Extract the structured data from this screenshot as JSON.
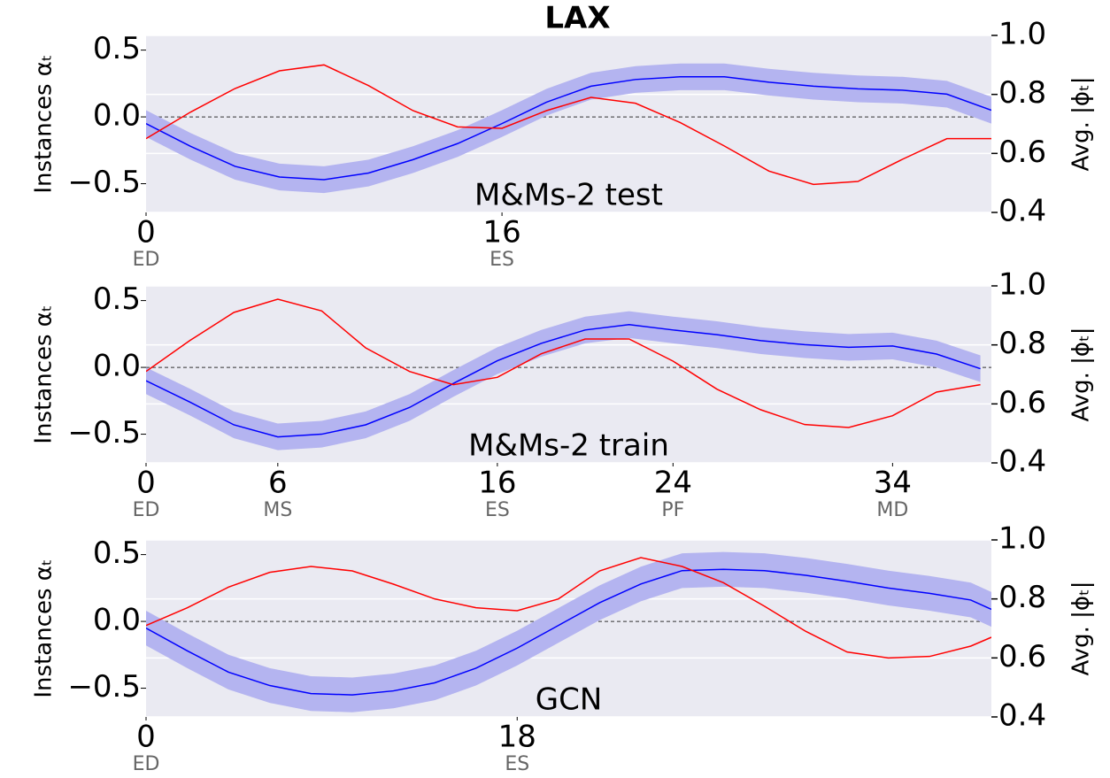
{
  "chart_data": [
    {
      "type": "line",
      "title": "LAX",
      "annotation": "M&Ms-2 test",
      "ylabel": "Instances αₜ",
      "y2label": "Avg. |ϕₜ|",
      "x": [
        0,
        2,
        4,
        6,
        8,
        10,
        12,
        14,
        16,
        18,
        20,
        22,
        24,
        26,
        28,
        30,
        32,
        34,
        36,
        38
      ],
      "xlim": [
        0,
        38
      ],
      "xticks": [
        0,
        16
      ],
      "xtick_phases": [
        "ED",
        "ES"
      ],
      "ylim": [
        -0.715,
        0.61
      ],
      "yticks": [
        {
          "value": -0.5,
          "label": "−0.5"
        },
        {
          "value": 0,
          "label": "0.0"
        },
        {
          "value": 0.5,
          "label": "0.5"
        }
      ],
      "y2lim": [
        0.4,
        1.0
      ],
      "y2ticks": [
        0.4,
        0.6,
        0.8,
        {
          "value": 1.0,
          "label": "1.0"
        }
      ],
      "grid": true,
      "zero_line": true,
      "series": [
        {
          "color": "#0000ff",
          "band_color": "#b4b4f0",
          "values": [
            -0.05,
            -0.22,
            -0.37,
            -0.45,
            -0.47,
            -0.42,
            -0.32,
            -0.2,
            -0.05,
            0.11,
            0.23,
            0.28,
            0.3,
            0.3,
            0.26,
            0.23,
            0.21,
            0.2,
            0.17,
            0.05
          ],
          "lower": [
            -0.15,
            -0.32,
            -0.47,
            -0.55,
            -0.57,
            -0.52,
            -0.42,
            -0.3,
            -0.15,
            0.01,
            0.13,
            0.18,
            0.2,
            0.2,
            0.16,
            0.13,
            0.11,
            0.1,
            0.07,
            -0.05
          ],
          "upper": [
            0.05,
            -0.12,
            -0.27,
            -0.35,
            -0.37,
            -0.32,
            -0.22,
            -0.1,
            0.05,
            0.21,
            0.33,
            0.38,
            0.4,
            0.4,
            0.36,
            0.33,
            0.31,
            0.3,
            0.27,
            0.15
          ]
        },
        {
          "color": "#ff0000",
          "axis": "y2",
          "values": [
            0.65,
            0.74,
            0.82,
            0.88,
            0.9,
            0.83,
            0.745,
            0.69,
            0.685,
            0.745,
            0.79,
            0.77,
            0.705,
            0.625,
            0.54,
            0.495,
            0.505,
            0.58,
            0.65,
            0.65
          ]
        }
      ]
    },
    {
      "type": "line",
      "annotation": "M&Ms-2 train",
      "ylabel": "Instances αₜ",
      "y2label": "Avg. |ϕₜ|",
      "x": [
        0,
        2,
        4,
        6,
        8,
        10,
        12,
        14,
        16,
        18,
        20,
        22,
        24,
        26,
        28,
        30,
        32,
        34,
        36,
        38
      ],
      "xlim": [
        0,
        38.5
      ],
      "xticks": [
        0,
        6,
        16,
        24,
        34
      ],
      "xtick_phases": [
        "ED",
        "MS",
        "ES",
        "PF",
        "MD"
      ],
      "ylim": [
        -0.715,
        0.61
      ],
      "yticks": [
        {
          "value": -0.5,
          "label": "−0.5"
        },
        {
          "value": 0,
          "label": "0.0"
        },
        {
          "value": 0.5,
          "label": "0.5"
        }
      ],
      "y2lim": [
        0.4,
        1.0
      ],
      "y2ticks": [
        0.4,
        0.6,
        0.8,
        {
          "value": 1.0,
          "label": "1.0"
        }
      ],
      "grid": true,
      "zero_line": true,
      "series": [
        {
          "color": "#0000ff",
          "band_color": "#b4b4f0",
          "values": [
            -0.1,
            -0.26,
            -0.43,
            -0.52,
            -0.5,
            -0.43,
            -0.3,
            -0.12,
            0.05,
            0.18,
            0.28,
            0.32,
            0.28,
            0.245,
            0.2,
            0.17,
            0.15,
            0.16,
            0.1,
            -0.01
          ],
          "lower": [
            -0.2,
            -0.36,
            -0.53,
            -0.62,
            -0.6,
            -0.53,
            -0.4,
            -0.22,
            -0.05,
            0.08,
            0.18,
            0.22,
            0.18,
            0.145,
            0.1,
            0.07,
            0.05,
            0.06,
            0,
            -0.11
          ],
          "upper": [
            0,
            -0.16,
            -0.33,
            -0.42,
            -0.4,
            -0.33,
            -0.2,
            -0.02,
            0.15,
            0.28,
            0.38,
            0.42,
            0.38,
            0.345,
            0.3,
            0.27,
            0.25,
            0.26,
            0.2,
            0.09
          ]
        },
        {
          "color": "#ff0000",
          "axis": "y2",
          "values": [
            0.71,
            0.815,
            0.91,
            0.955,
            0.915,
            0.79,
            0.71,
            0.665,
            0.69,
            0.77,
            0.82,
            0.82,
            0.745,
            0.65,
            0.58,
            0.53,
            0.52,
            0.56,
            0.64,
            0.665
          ]
        }
      ]
    },
    {
      "type": "line",
      "annotation": "GCN",
      "ylabel": "Instances αₜ",
      "y2label": "Avg. |ϕₜ|",
      "x": [
        0,
        2,
        4,
        6,
        8,
        10,
        12,
        14,
        16,
        18,
        20,
        22,
        24,
        26,
        28,
        30,
        32,
        34,
        36,
        38,
        40,
        41
      ],
      "xlim": [
        0,
        41
      ],
      "xticks": [
        0,
        18
      ],
      "xtick_phases": [
        "ED",
        "ES"
      ],
      "ylim": [
        -0.715,
        0.61
      ],
      "yticks": [
        {
          "value": -0.5,
          "label": "−0.5"
        },
        {
          "value": 0,
          "label": "0.0"
        },
        {
          "value": 0.5,
          "label": "0.5"
        }
      ],
      "y2lim": [
        0.4,
        1.0
      ],
      "y2ticks": [
        0.4,
        0.6,
        0.8,
        {
          "value": 1.0,
          "label": "1.0"
        }
      ],
      "grid": true,
      "zero_line": true,
      "series": [
        {
          "color": "#0000ff",
          "band_color": "#b4b4f0",
          "values": [
            -0.05,
            -0.22,
            -0.38,
            -0.48,
            -0.54,
            -0.55,
            -0.52,
            -0.46,
            -0.35,
            -0.2,
            -0.03,
            0.14,
            0.28,
            0.38,
            0.39,
            0.38,
            0.345,
            0.3,
            0.25,
            0.21,
            0.16,
            0.09
          ],
          "lower": [
            -0.18,
            -0.35,
            -0.51,
            -0.61,
            -0.67,
            -0.68,
            -0.65,
            -0.59,
            -0.48,
            -0.33,
            -0.16,
            0.01,
            0.15,
            0.25,
            0.26,
            0.25,
            0.215,
            0.17,
            0.12,
            0.08,
            0.03,
            -0.04
          ],
          "upper": [
            0.08,
            -0.09,
            -0.25,
            -0.35,
            -0.41,
            -0.42,
            -0.39,
            -0.33,
            -0.22,
            -0.07,
            0.1,
            0.27,
            0.41,
            0.51,
            0.52,
            0.51,
            0.475,
            0.43,
            0.38,
            0.34,
            0.29,
            0.22
          ]
        },
        {
          "color": "#ff0000",
          "axis": "y2",
          "values": [
            0.71,
            0.77,
            0.84,
            0.89,
            0.91,
            0.895,
            0.85,
            0.8,
            0.77,
            0.76,
            0.8,
            0.895,
            0.94,
            0.91,
            0.855,
            0.775,
            0.69,
            0.62,
            0.6,
            0.605,
            0.64,
            0.67
          ]
        }
      ]
    }
  ]
}
